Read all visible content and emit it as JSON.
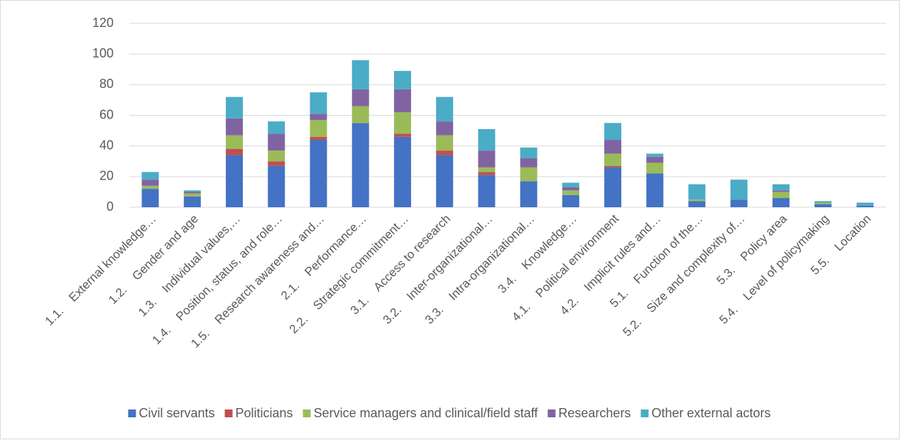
{
  "chart_data": {
    "type": "stacked_bar",
    "categories": [
      "1.1.    External knowledge…",
      "1.2.    Gender and age",
      "1.3.    Individual values,…",
      "1.4.    Position, status, and role…",
      "1.5.    Research awareness and…",
      "2.1.    Performance…",
      "2.2.    Strategic commitment…",
      "3.1.    Access to research",
      "3.2.    Inter-organizational…",
      "3.3.    Intra-organizational…",
      "3.4.    Knowledge…",
      "4.1.    Political environment",
      "4.2.    Implicit rules and…",
      "5.1.    Function of the…",
      "5.2.    Size and complexity of…",
      "5.3.    Policy area",
      "5.4.    Level of policymaking",
      "5.5.    Location"
    ],
    "series": [
      {
        "name": "Civil servants",
        "color": "#4472c4",
        "values": [
          12,
          7,
          34,
          27,
          44,
          55,
          46,
          34,
          21,
          17,
          8,
          26,
          22,
          4,
          5,
          6,
          2,
          1
        ]
      },
      {
        "name": "Politicians",
        "color": "#c0504d",
        "values": [
          0,
          0,
          4,
          3,
          2,
          0,
          2,
          3,
          2,
          0,
          0,
          1,
          0,
          0,
          0,
          0,
          0,
          0
        ]
      },
      {
        "name": "Service managers and clinical/field staff",
        "color": "#9bbb59",
        "values": [
          2,
          2,
          9,
          7,
          11,
          11,
          14,
          10,
          3,
          9,
          3,
          8,
          7,
          1,
          0,
          4,
          1,
          0
        ]
      },
      {
        "name": "Researchers",
        "color": "#8064a2",
        "values": [
          4,
          1,
          11,
          11,
          4,
          11,
          15,
          9,
          11,
          6,
          2,
          9,
          4,
          0,
          0,
          1,
          0,
          0
        ]
      },
      {
        "name": "Other external actors",
        "color": "#4bacc6",
        "values": [
          5,
          1,
          14,
          8,
          14,
          19,
          12,
          16,
          14,
          7,
          3,
          11,
          2,
          10,
          13,
          4,
          1,
          2
        ]
      }
    ],
    "ylim": [
      0,
      120
    ],
    "yticks": [
      0,
      20,
      40,
      60,
      80,
      100,
      120
    ],
    "grid": true,
    "legend": "bottom"
  }
}
